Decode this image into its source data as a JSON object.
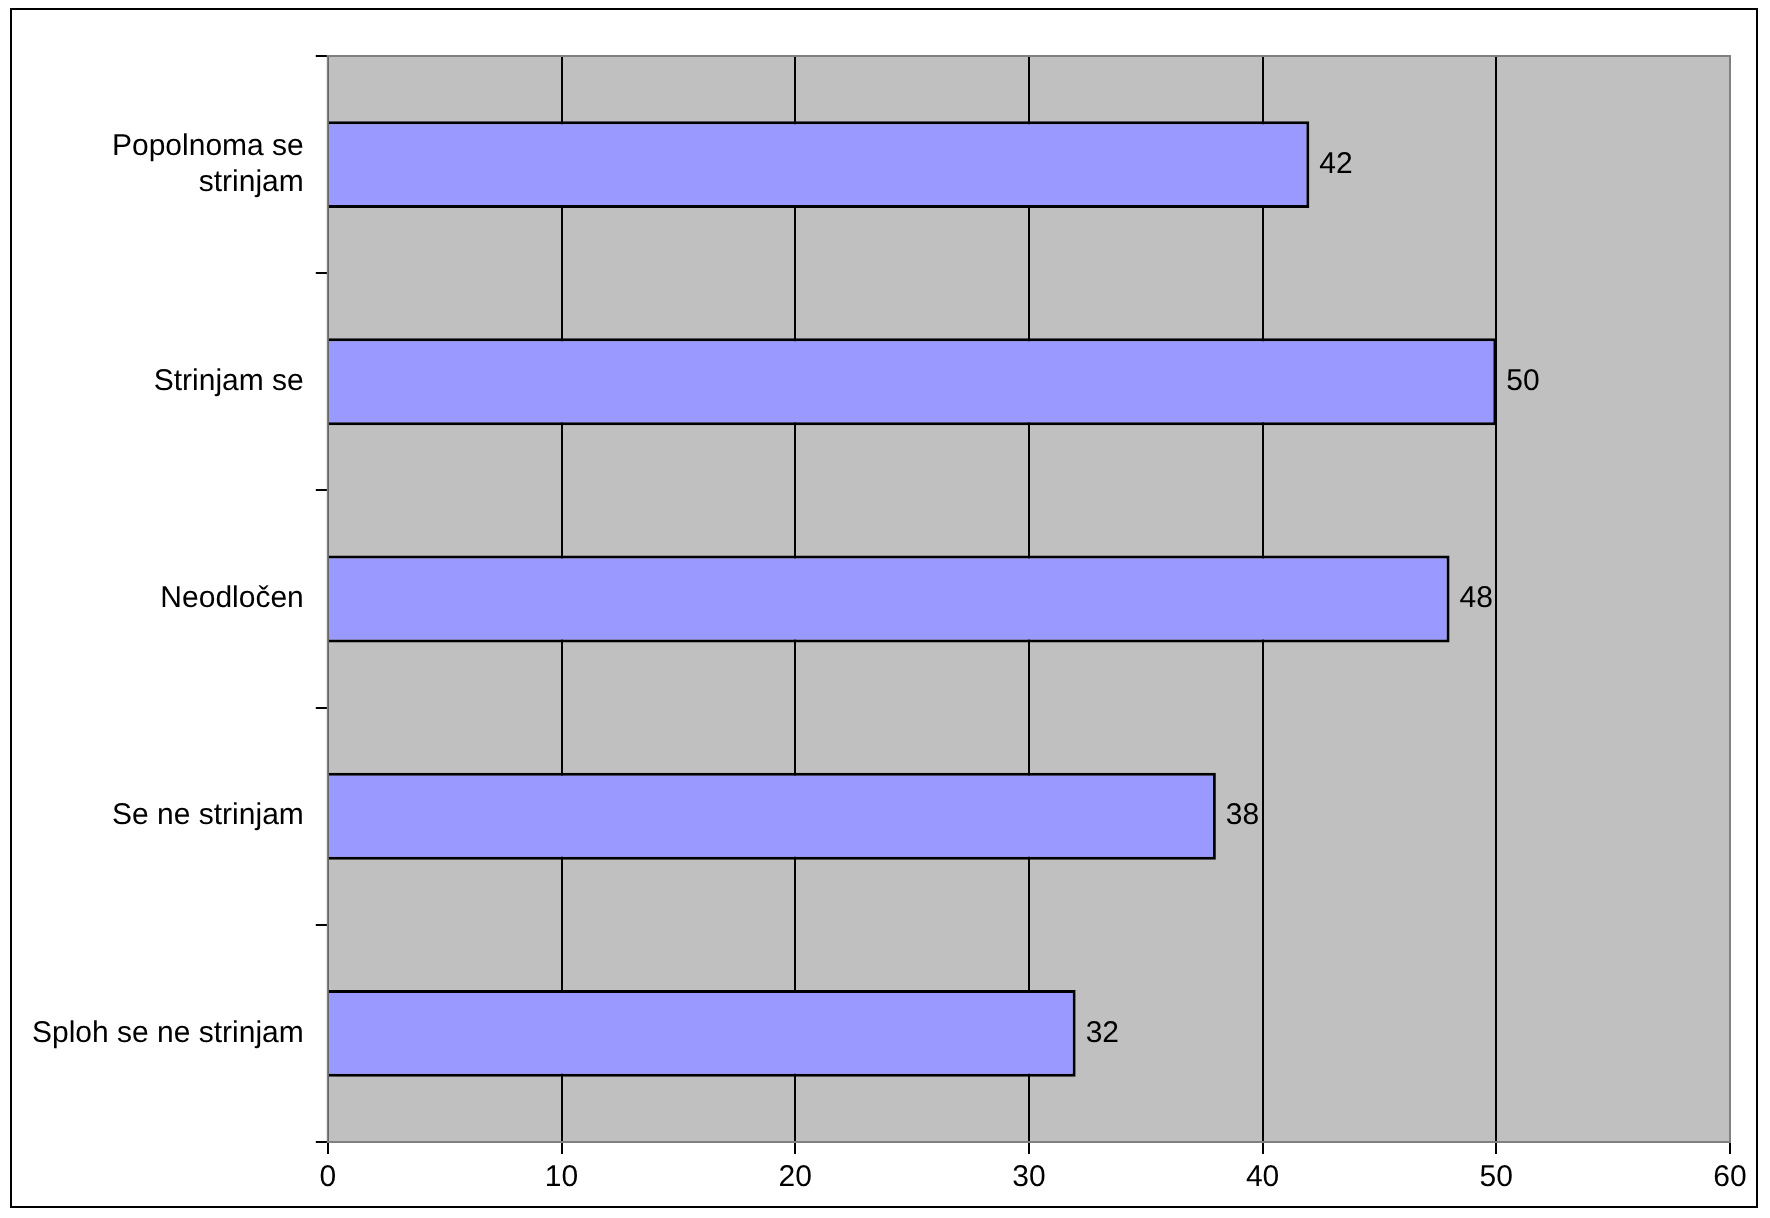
{
  "chart_data": {
    "type": "bar",
    "orientation": "horizontal",
    "categories": [
      "Popolnoma se strinjam",
      "Strinjam se",
      "Neodločen",
      "Se ne strinjam",
      "Sploh se ne strinjam"
    ],
    "values": [
      42,
      50,
      48,
      38,
      32
    ],
    "color": "#9999ff",
    "xlim": [
      0,
      60
    ],
    "xticks": [
      0,
      10,
      20,
      30,
      40,
      50,
      60
    ],
    "grid": "x",
    "data_labels": true,
    "legend": false
  }
}
